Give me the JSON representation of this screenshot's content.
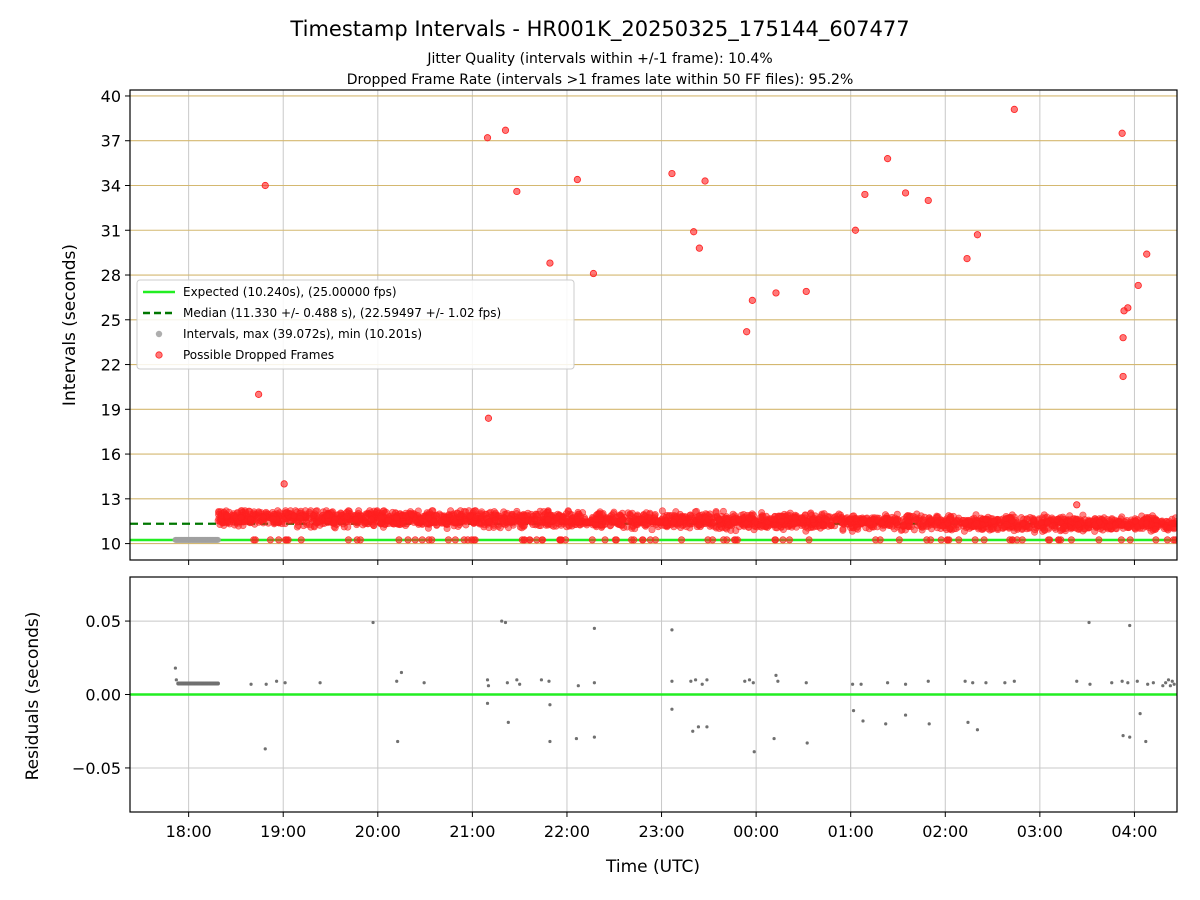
{
  "title": "Timestamp Intervals - HR001K_20250325_175144_607477",
  "subtitle_lines": [
    "Jitter Quality (intervals within +/-1 frame): 10.4%",
    "Dropped Frame Rate (intervals >1 frames late within 50 FF files): 95.2%"
  ],
  "colors": {
    "expected": "#22ee22",
    "median": "#007700",
    "intervals": "#a0a0a0",
    "dropped": "#ff2020",
    "hgrid_top": "#d4b870",
    "grid": "#c8c8c8",
    "residual_point": "#707070"
  },
  "chart_data": [
    {
      "type": "scatter",
      "xlabel": "",
      "ylabel": "Intervals (seconds)",
      "x_unit": "hours UTC since 2025-03-25 00:00",
      "xlim": [
        17.38,
        28.45
      ],
      "ylim": [
        8.9,
        40.4
      ],
      "yticks": [
        "10",
        "13",
        "16",
        "19",
        "22",
        "25",
        "28",
        "31",
        "34",
        "37",
        "40"
      ],
      "xticks": [
        "18:00",
        "19:00",
        "20:00",
        "21:00",
        "22:00",
        "23:00",
        "00:00",
        "01:00",
        "02:00",
        "03:00",
        "04:00"
      ],
      "grid": true,
      "legend_position": "center-left",
      "legend": [
        "Expected (10.240s), (25.00000 fps)",
        "Median (11.330 +/- 0.488 s), (22.59497 +/- 1.02 fps)",
        "Intervals, max (39.072s), min (10.201s)",
        "Possible Dropped Frames"
      ],
      "expected_value": 10.24,
      "median_value": 11.33,
      "baseline_cluster": {
        "x_start": 17.86,
        "x_end": 18.31,
        "value": 10.25
      },
      "dense_band": {
        "x_start": 18.31,
        "x_end": 28.45,
        "min": 10.55,
        "max": 12.2
      },
      "outliers": [
        {
          "x": 18.74,
          "y": 20.0
        },
        {
          "x": 18.81,
          "y": 34.0
        },
        {
          "x": 19.01,
          "y": 14.0
        },
        {
          "x": 21.16,
          "y": 37.2
        },
        {
          "x": 21.35,
          "y": 37.7
        },
        {
          "x": 21.47,
          "y": 33.6
        },
        {
          "x": 21.17,
          "y": 18.4
        },
        {
          "x": 21.82,
          "y": 28.8
        },
        {
          "x": 22.11,
          "y": 34.4
        },
        {
          "x": 22.28,
          "y": 28.1
        },
        {
          "x": 23.11,
          "y": 34.8
        },
        {
          "x": 23.34,
          "y": 30.9
        },
        {
          "x": 23.4,
          "y": 29.8
        },
        {
          "x": 23.46,
          "y": 34.3
        },
        {
          "x": 23.9,
          "y": 24.2
        },
        {
          "x": 23.96,
          "y": 26.3
        },
        {
          "x": 24.21,
          "y": 26.8
        },
        {
          "x": 24.53,
          "y": 26.9
        },
        {
          "x": 25.05,
          "y": 31.0
        },
        {
          "x": 25.15,
          "y": 33.4
        },
        {
          "x": 25.39,
          "y": 35.8
        },
        {
          "x": 25.58,
          "y": 33.5
        },
        {
          "x": 25.82,
          "y": 33.0
        },
        {
          "x": 26.23,
          "y": 29.1
        },
        {
          "x": 26.34,
          "y": 30.7
        },
        {
          "x": 26.73,
          "y": 39.1
        },
        {
          "x": 27.39,
          "y": 12.6
        },
        {
          "x": 27.87,
          "y": 37.5
        },
        {
          "x": 27.88,
          "y": 21.2
        },
        {
          "x": 27.88,
          "y": 23.8
        },
        {
          "x": 27.89,
          "y": 25.6
        },
        {
          "x": 27.93,
          "y": 25.8
        },
        {
          "x": 28.04,
          "y": 27.3
        },
        {
          "x": 28.13,
          "y": 29.4
        }
      ]
    },
    {
      "type": "scatter",
      "xlabel": "Time (UTC)",
      "ylabel": "Residuals (seconds)",
      "ylim": [
        -0.08,
        0.08
      ],
      "yticks": [
        {
          "value": 0.05,
          "label": "0.05"
        },
        {
          "value": 0.0,
          "label": "0.00"
        },
        {
          "value": -0.05,
          "label": "−0.05"
        }
      ],
      "zero_line": 0.0,
      "baseline_cluster": {
        "x_start": 17.89,
        "x_end": 18.31,
        "value": 0.0075
      },
      "points": [
        {
          "x": 17.86,
          "y": 0.018
        },
        {
          "x": 17.87,
          "y": 0.01
        },
        {
          "x": 18.66,
          "y": 0.007
        },
        {
          "x": 18.82,
          "y": 0.007
        },
        {
          "x": 18.81,
          "y": -0.037
        },
        {
          "x": 18.93,
          "y": 0.009
        },
        {
          "x": 19.02,
          "y": 0.008
        },
        {
          "x": 19.39,
          "y": 0.008
        },
        {
          "x": 19.95,
          "y": 0.049
        },
        {
          "x": 20.2,
          "y": 0.009
        },
        {
          "x": 20.25,
          "y": 0.015
        },
        {
          "x": 20.21,
          "y": -0.032
        },
        {
          "x": 20.49,
          "y": 0.008
        },
        {
          "x": 21.16,
          "y": 0.01
        },
        {
          "x": 21.17,
          "y": 0.006
        },
        {
          "x": 21.16,
          "y": -0.006
        },
        {
          "x": 21.31,
          "y": 0.05
        },
        {
          "x": 21.35,
          "y": 0.049
        },
        {
          "x": 21.37,
          "y": 0.008
        },
        {
          "x": 21.38,
          "y": -0.019
        },
        {
          "x": 21.47,
          "y": 0.01
        },
        {
          "x": 21.5,
          "y": 0.007
        },
        {
          "x": 21.73,
          "y": 0.01
        },
        {
          "x": 21.81,
          "y": 0.009
        },
        {
          "x": 21.82,
          "y": -0.007
        },
        {
          "x": 21.82,
          "y": -0.032
        },
        {
          "x": 22.12,
          "y": 0.006
        },
        {
          "x": 22.1,
          "y": -0.03
        },
        {
          "x": 22.29,
          "y": 0.045
        },
        {
          "x": 22.29,
          "y": 0.008
        },
        {
          "x": 22.29,
          "y": -0.029
        },
        {
          "x": 23.11,
          "y": 0.044
        },
        {
          "x": 23.11,
          "y": 0.009
        },
        {
          "x": 23.11,
          "y": -0.01
        },
        {
          "x": 23.31,
          "y": 0.009
        },
        {
          "x": 23.33,
          "y": -0.025
        },
        {
          "x": 23.36,
          "y": 0.01
        },
        {
          "x": 23.39,
          "y": -0.022
        },
        {
          "x": 23.43,
          "y": 0.007
        },
        {
          "x": 23.48,
          "y": 0.01
        },
        {
          "x": 23.48,
          "y": -0.022
        },
        {
          "x": 23.88,
          "y": 0.009
        },
        {
          "x": 23.93,
          "y": 0.01
        },
        {
          "x": 23.97,
          "y": 0.008
        },
        {
          "x": 23.98,
          "y": -0.039
        },
        {
          "x": 24.21,
          "y": 0.013
        },
        {
          "x": 24.23,
          "y": 0.009
        },
        {
          "x": 24.19,
          "y": -0.03
        },
        {
          "x": 24.53,
          "y": 0.008
        },
        {
          "x": 24.54,
          "y": -0.033
        },
        {
          "x": 25.02,
          "y": 0.007
        },
        {
          "x": 25.03,
          "y": -0.011
        },
        {
          "x": 25.11,
          "y": 0.007
        },
        {
          "x": 25.13,
          "y": -0.018
        },
        {
          "x": 25.39,
          "y": 0.008
        },
        {
          "x": 25.37,
          "y": -0.02
        },
        {
          "x": 25.58,
          "y": 0.007
        },
        {
          "x": 25.58,
          "y": -0.014
        },
        {
          "x": 25.82,
          "y": 0.009
        },
        {
          "x": 25.83,
          "y": -0.02
        },
        {
          "x": 26.21,
          "y": 0.009
        },
        {
          "x": 26.24,
          "y": -0.019
        },
        {
          "x": 26.29,
          "y": 0.008
        },
        {
          "x": 26.34,
          "y": -0.024
        },
        {
          "x": 26.43,
          "y": 0.008
        },
        {
          "x": 26.63,
          "y": 0.008
        },
        {
          "x": 26.73,
          "y": 0.009
        },
        {
          "x": 27.39,
          "y": 0.009
        },
        {
          "x": 27.52,
          "y": 0.049
        },
        {
          "x": 27.53,
          "y": 0.007
        },
        {
          "x": 27.76,
          "y": 0.008
        },
        {
          "x": 27.87,
          "y": 0.009
        },
        {
          "x": 27.88,
          "y": -0.028
        },
        {
          "x": 27.93,
          "y": 0.008
        },
        {
          "x": 27.95,
          "y": 0.047
        },
        {
          "x": 27.95,
          "y": -0.029
        },
        {
          "x": 28.03,
          "y": 0.009
        },
        {
          "x": 28.06,
          "y": -0.013
        },
        {
          "x": 28.12,
          "y": -0.032
        },
        {
          "x": 28.14,
          "y": 0.007
        },
        {
          "x": 28.2,
          "y": 0.008
        },
        {
          "x": 28.3,
          "y": 0.006
        },
        {
          "x": 28.33,
          "y": 0.008
        },
        {
          "x": 28.36,
          "y": 0.01
        },
        {
          "x": 28.38,
          "y": 0.006
        },
        {
          "x": 28.4,
          "y": 0.009
        },
        {
          "x": 28.42,
          "y": 0.007
        }
      ]
    }
  ]
}
